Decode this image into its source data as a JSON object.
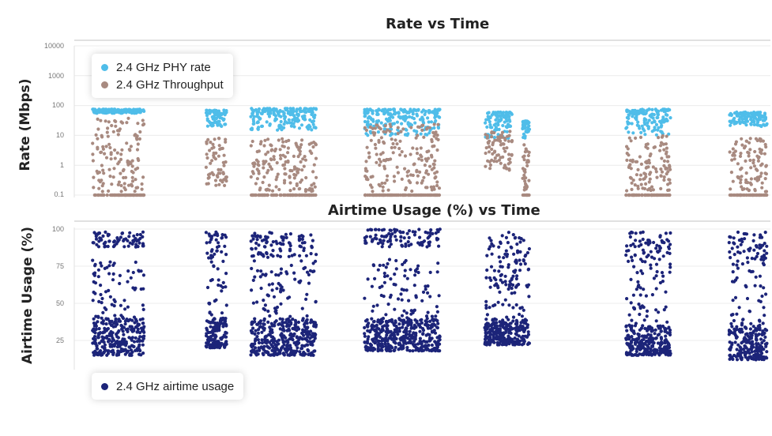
{
  "top_chart": {
    "title": "Rate vs Time",
    "ylabel": "Rate (Mbps)",
    "ticks": [
      "10000",
      "1000",
      "100",
      "10",
      "1",
      "0.1"
    ],
    "legend": [
      {
        "label": "2.4 GHz PHY rate",
        "color": "#4fbde9"
      },
      {
        "label": "2.4 GHz Throughput",
        "color": "#a88a80"
      }
    ]
  },
  "bottom_chart": {
    "title": "Airtime Usage (%) vs Time",
    "ylabel": "Airtime Usage (%)",
    "ticks": [
      "100",
      "75",
      "50",
      "25"
    ],
    "legend": [
      {
        "label": "2.4 GHz airtime usage",
        "color": "#1c2479"
      }
    ]
  },
  "chart_data": [
    {
      "type": "scatter",
      "title": "Rate vs Time",
      "ylabel": "Rate (Mbps)",
      "xlabel": "",
      "y_scale": "log",
      "ylim": [
        0.1,
        10000
      ],
      "x_range": [
        0,
        100
      ],
      "grid": true,
      "legend_position": "top-left",
      "clusters": [
        {
          "x": [
            3,
            18
          ],
          "phy": [
            55,
            75
          ],
          "thr": [
            0.1,
            40
          ],
          "thr_floor": true
        },
        {
          "x": [
            36,
            42
          ],
          "phy": [
            20,
            70
          ],
          "thr": [
            0.15,
            8
          ],
          "thr_floor": false
        },
        {
          "x": [
            49,
            68
          ],
          "phy": [
            15,
            80
          ],
          "thr": [
            0.1,
            8
          ],
          "thr_floor": true
        },
        {
          "x": [
            82,
            104
          ],
          "phy": [
            10,
            75
          ],
          "thr": [
            0.1,
            25
          ],
          "thr_floor": true
        },
        {
          "x": [
            117,
            125
          ],
          "phy": [
            8,
            60
          ],
          "thr": [
            0.5,
            15
          ],
          "thr_floor": false
        },
        {
          "x": [
            128,
            130
          ],
          "phy": [
            8,
            30
          ],
          "thr": [
            0.1,
            5
          ],
          "thr_floor": true
        },
        {
          "x": [
            158,
            171
          ],
          "phy": [
            10,
            75
          ],
          "thr": [
            0.1,
            10
          ],
          "thr_floor": true
        },
        {
          "x": [
            188,
            199
          ],
          "phy": [
            20,
            60
          ],
          "thr": [
            0.1,
            8
          ],
          "thr_floor": true
        }
      ],
      "series": [
        {
          "name": "2.4 GHz PHY rate",
          "color": "#4fbde9"
        },
        {
          "name": "2.4 GHz Throughput",
          "color": "#a88a80"
        }
      ]
    },
    {
      "type": "scatter",
      "title": "Airtime Usage (%) vs Time",
      "ylabel": "Airtime Usage (%)",
      "xlabel": "",
      "ylim": [
        10,
        100
      ],
      "grid": true,
      "legend_position": "bottom-left",
      "clusters": [
        {
          "x": [
            3,
            18
          ],
          "dense": [
            15,
            40
          ],
          "top": [
            88,
            98
          ],
          "spread": [
            40,
            80
          ]
        },
        {
          "x": [
            36,
            42
          ],
          "dense": [
            20,
            40
          ],
          "top": [
            80,
            98
          ],
          "spread": [
            35,
            80
          ]
        },
        {
          "x": [
            49,
            68
          ],
          "dense": [
            15,
            40
          ],
          "top": [
            80,
            98
          ],
          "spread": [
            35,
            85
          ]
        },
        {
          "x": [
            82,
            104
          ],
          "dense": [
            18,
            40
          ],
          "top": [
            88,
            100
          ],
          "spread": [
            35,
            80
          ]
        },
        {
          "x": [
            117,
            130
          ],
          "dense": [
            22,
            40
          ],
          "top": [
            60,
            98
          ],
          "spread": [
            40,
            85
          ]
        },
        {
          "x": [
            158,
            171
          ],
          "dense": [
            15,
            35
          ],
          "top": [
            80,
            98
          ],
          "spread": [
            35,
            80
          ]
        },
        {
          "x": [
            188,
            199
          ],
          "dense": [
            12,
            35
          ],
          "top": [
            80,
            98
          ],
          "spread": [
            35,
            80
          ]
        }
      ],
      "series": [
        {
          "name": "2.4 GHz airtime usage",
          "color": "#1c2479"
        }
      ]
    }
  ]
}
